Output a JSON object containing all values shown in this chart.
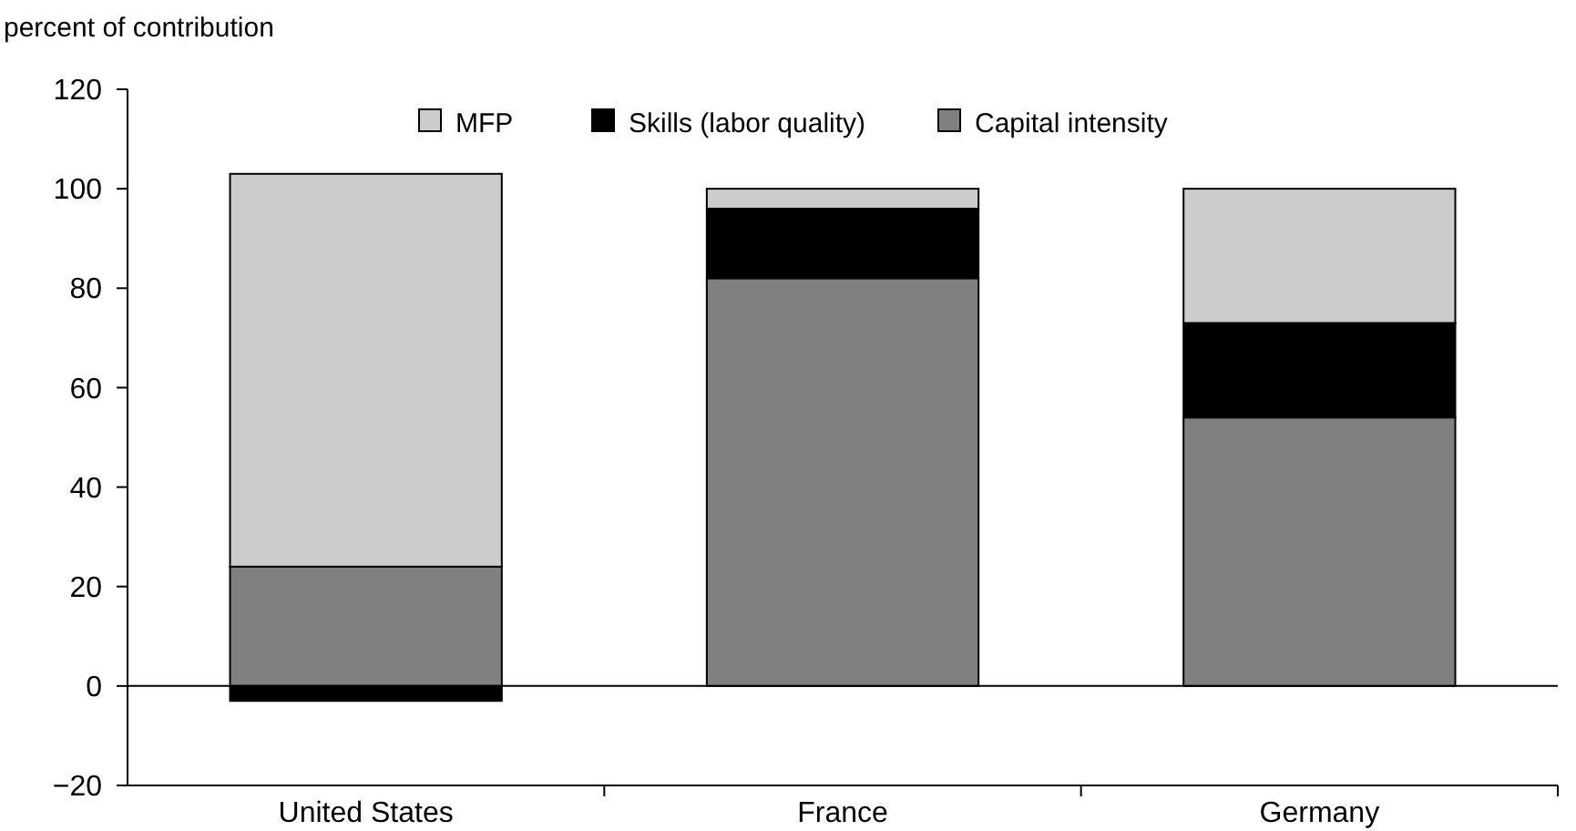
{
  "chart_data": {
    "type": "bar",
    "ylabel": "percent of contribution",
    "categories": [
      "United States",
      "France",
      "Germany"
    ],
    "stacked": true,
    "legend": "top",
    "ylim": [
      -20,
      120
    ],
    "yticks": [
      {
        "value": -20,
        "label": "−20"
      },
      0,
      20,
      40,
      60,
      80,
      100,
      120
    ],
    "series": [
      {
        "name": "Capital intensity",
        "color": "#808080",
        "values": [
          24,
          82,
          54
        ]
      },
      {
        "name": "Skills (labor quality)",
        "color": "#000000",
        "values": [
          -3,
          14,
          19
        ]
      },
      {
        "name": "MFP",
        "color": "#cccccc",
        "values": [
          79,
          4,
          27
        ]
      }
    ]
  }
}
